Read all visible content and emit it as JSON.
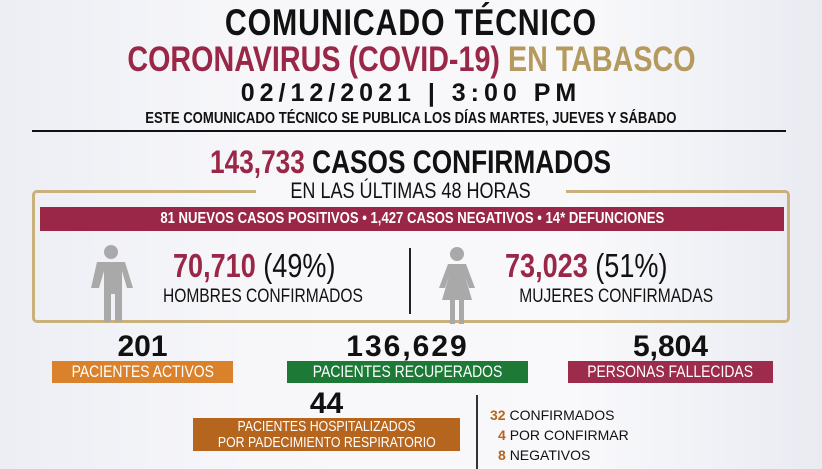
{
  "header": {
    "title": "COMUNICADO TÉCNICO",
    "subtitle_red": "CORONAVIRUS (COVID-19)",
    "subtitle_gold": "EN TABASCO",
    "datetime": "02/12/2021 | 3:00 PM",
    "schedule": "ESTE COMUNICADO TÉCNICO SE PUBLICA LOS DÍAS MARTES, JUEVES Y SÁBADO"
  },
  "totals": {
    "confirmed": "143,733",
    "confirmed_label": "CASOS CONFIRMADOS"
  },
  "last48": {
    "heading": "EN LAS ÚLTIMAS 48 HORAS",
    "summary": "81 NUEVOS CASOS POSITIVOS • 1,427 CASOS NEGATIVOS • 14* DEFUNCIONES"
  },
  "gender": {
    "men": {
      "value": "70,710",
      "pct": "(49%)",
      "label": "HOMBRES CONFIRMADOS",
      "icon": "male-person-icon"
    },
    "women": {
      "value": "73,023",
      "pct": "(51%)",
      "label": "MUJERES CONFIRMADAS",
      "icon": "female-person-icon"
    }
  },
  "stats": [
    {
      "value": "201",
      "label": "PACIENTES ACTIVOS",
      "color": "#d9822b"
    },
    {
      "value": "136,629",
      "label": "PACIENTES RECUPERADOS",
      "color": "#1d7a36"
    },
    {
      "value": "5,804",
      "label": "PERSONAS FALLECIDAS",
      "color": "#9c2b4c"
    }
  ],
  "hospital": {
    "value": "44",
    "label_line1": "PACIENTES HOSPITALIZADOS",
    "label_line2": "POR PADECIMIENTO RESPIRATORIO",
    "color": "#b5651d",
    "breakdown": [
      {
        "value": "32",
        "label": "CONFIRMADOS"
      },
      {
        "value": "4",
        "label": "POR CONFIRMAR"
      },
      {
        "value": "8",
        "label": "NEGATIVOS"
      }
    ]
  },
  "colors": {
    "maroon": "#9a2747",
    "gold": "#c9b17c",
    "gold_text": "#b59a5e"
  }
}
